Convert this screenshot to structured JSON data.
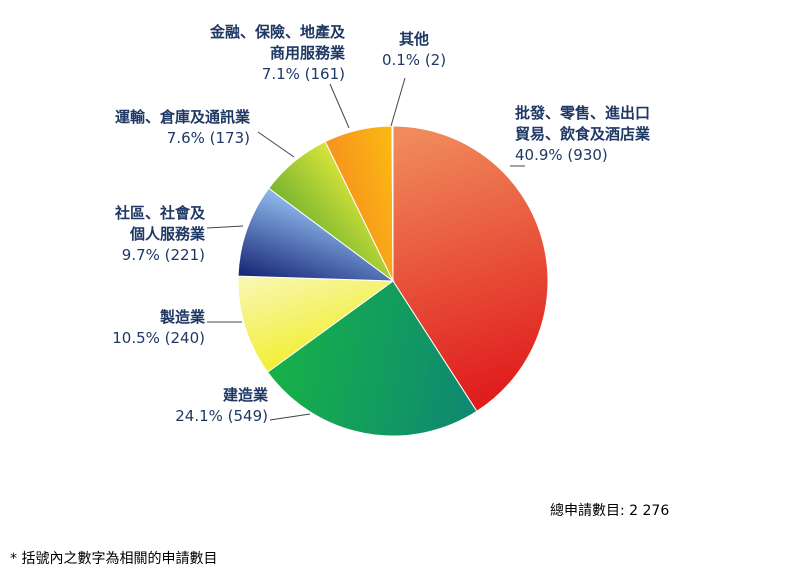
{
  "chart_data": {
    "type": "pie",
    "slices": [
      {
        "label_lines": [
          "批發、零售、進出口",
          "貿易、飲食及酒店業"
        ],
        "value_text": "40.9% (930)",
        "percent": 40.9,
        "count": 930,
        "color_a": "#f08a5a",
        "color_b": "#e01e1e"
      },
      {
        "label_lines": [
          "建造業"
        ],
        "value_text": "24.1% (549)",
        "percent": 24.1,
        "count": 549,
        "color_a": "#0f8a70",
        "color_b": "#16b04a"
      },
      {
        "label_lines": [
          "製造業"
        ],
        "value_text": "10.5% (240)",
        "percent": 10.5,
        "count": 240,
        "color_a": "#f2ef3a",
        "color_b": "#f8f7b0"
      },
      {
        "label_lines": [
          "社區、社會及",
          "個人服務業"
        ],
        "value_text": "9.7% (221)",
        "percent": 9.7,
        "count": 221,
        "color_a": "#1a2a7a",
        "color_b": "#8ab4e8"
      },
      {
        "label_lines": [
          "運輸、倉庫及通訊業"
        ],
        "value_text": "7.6% (173)",
        "percent": 7.6,
        "count": 173,
        "color_a": "#7cb82f",
        "color_b": "#d4e23a"
      },
      {
        "label_lines": [
          "金融、保險、地產及",
          "商用服務業"
        ],
        "value_text": "7.1% (161)",
        "percent": 7.1,
        "count": 161,
        "color_a": "#f7941d",
        "color_b": "#fbb813"
      },
      {
        "label_lines": [
          "其他"
        ],
        "value_text": "0.1% (2)",
        "percent": 0.1,
        "count": 2,
        "color_a": "#9aa6b2",
        "color_b": "#9aa6b2"
      }
    ],
    "total_label": "總申請數目: 2 276",
    "footnote": "* 括號內之數字為相關的申請數目"
  }
}
